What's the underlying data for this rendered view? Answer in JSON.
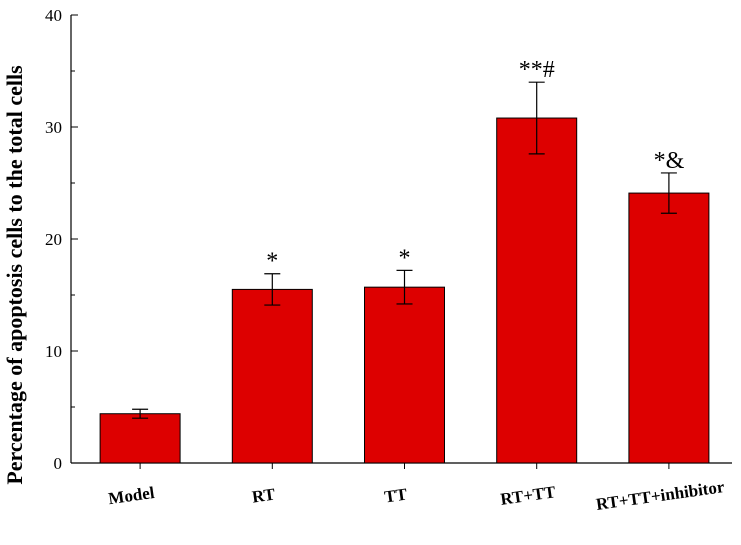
{
  "chart_data": {
    "type": "bar",
    "title": "",
    "xlabel": "",
    "ylabel": "Percentage of apoptosis cells to the total cells",
    "ylim": [
      0,
      40
    ],
    "yticks": [
      0,
      10,
      20,
      30,
      40
    ],
    "grid": false,
    "bar_color": "#dd0000",
    "categories": [
      "Model",
      "RT",
      "TT",
      "RT+TT",
      "RT+TT+inhibitor"
    ],
    "values": [
      4.4,
      15.5,
      15.7,
      30.8,
      24.1
    ],
    "errors": [
      0.4,
      1.4,
      1.5,
      3.2,
      1.8
    ],
    "annotations": [
      "",
      "*",
      "*",
      "**#",
      "*&"
    ]
  }
}
